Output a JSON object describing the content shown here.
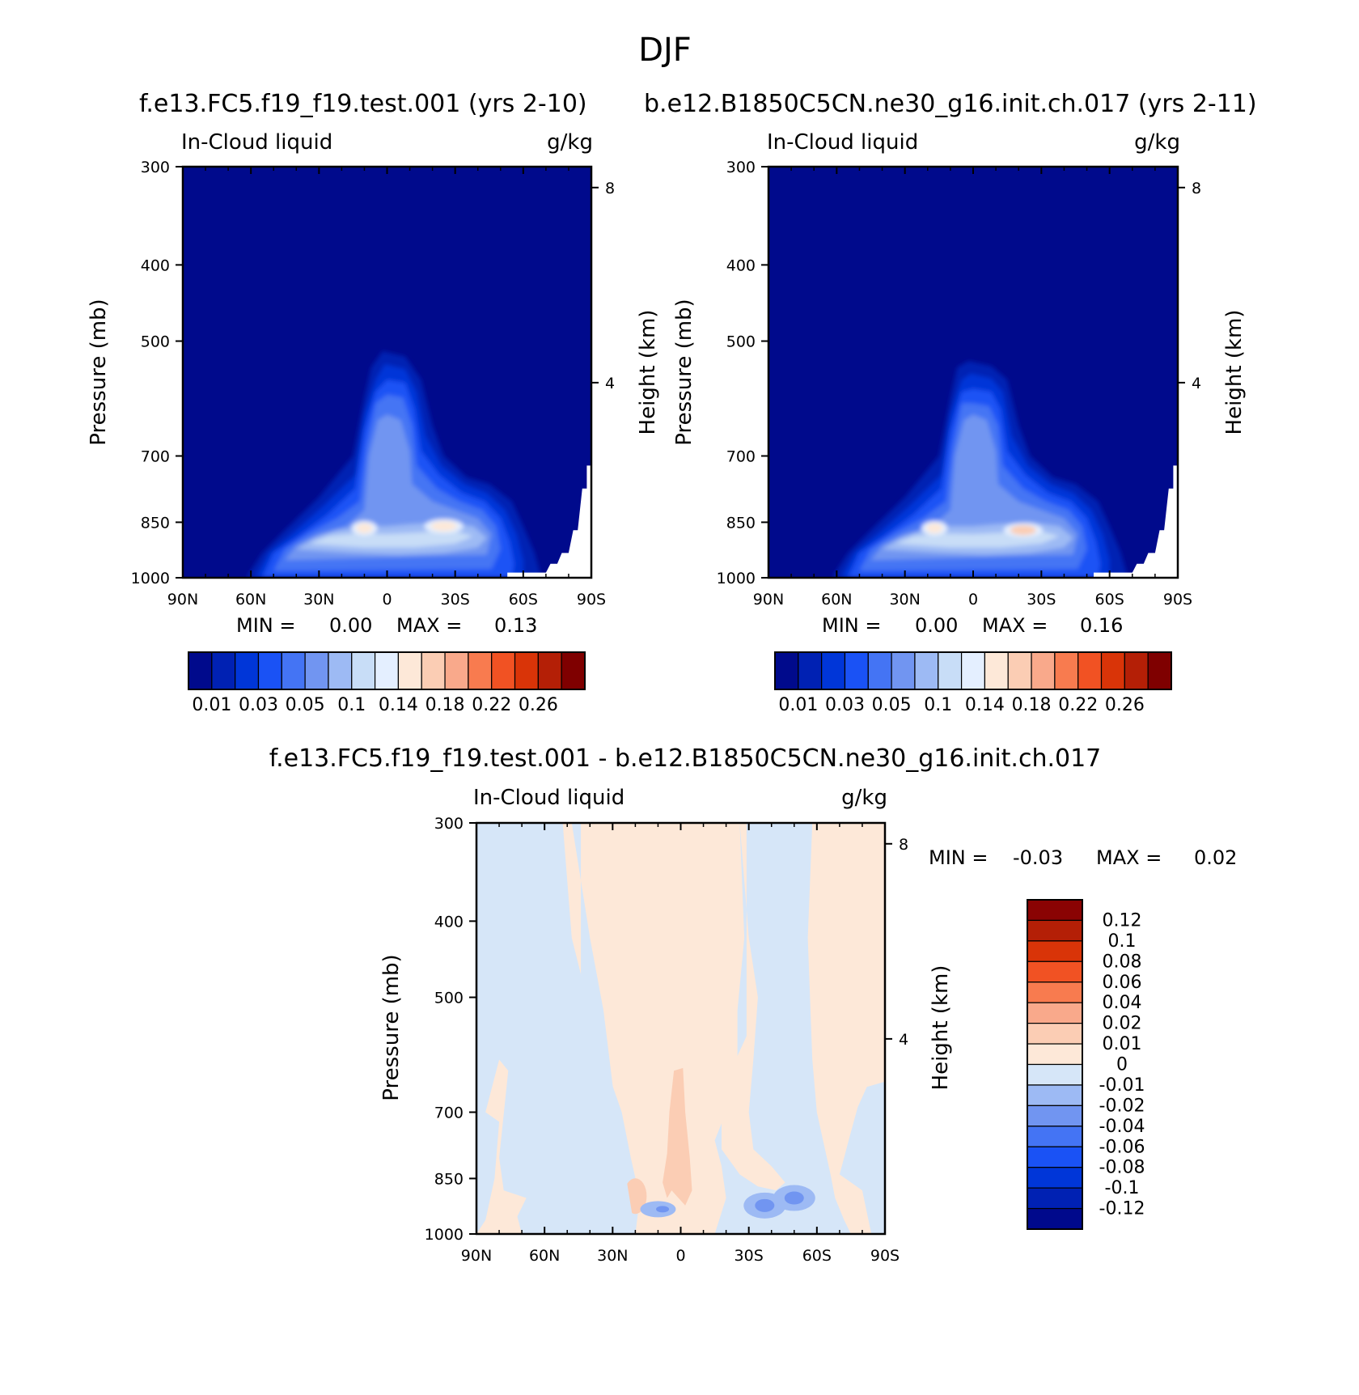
{
  "figure": {
    "title": "DJF",
    "panel1_subtitle": "f.e13.FC5.f19_f19.test.001 (yrs 2-10)",
    "panel2_subtitle": "b.e12.B1850C5CN.ne30_g16.init.ch.017 (yrs 2-11)",
    "panel3_subtitle": "f.e13.FC5.f19_f19.test.001 - b.e12.B1850C5CN.ne30_g16.init.ch.017"
  },
  "colors": {
    "abs_levels": [
      "#000a8c",
      "#0021b3",
      "#0036d8",
      "#1a52f5",
      "#4474f4",
      "#7195f1",
      "#9dbaf4",
      "#c8ddf7",
      "#e4efff",
      "#fde8d8",
      "#fbcdb4",
      "#f9a98b",
      "#f87b4f",
      "#f15223",
      "#d93408",
      "#b41f06",
      "#7f0000"
    ],
    "diff_levels": [
      "#00098c",
      "#0021b3",
      "#0036d8",
      "#1a52f5",
      "#4474f4",
      "#7195f1",
      "#9dbaf4",
      "#d6e6f8",
      "#fde8d8",
      "#fbcdb4",
      "#f9a98b",
      "#f87b4f",
      "#f15223",
      "#d93408",
      "#b41f06",
      "#8a0303"
    ]
  },
  "chart_data": [
    {
      "type": "heatmap",
      "name": "model-test",
      "title": "In-Cloud liquid",
      "units": "g/kg",
      "subtitle": "f.e13.FC5.f19_f19.test.001 (yrs 2-10)",
      "xlabel": "",
      "ylabel": "Pressure (mb)",
      "y2label": "Height (km)",
      "xticks": [
        "90N",
        "60N",
        "30N",
        "0",
        "30S",
        "60S",
        "90S"
      ],
      "yticks": [
        "300",
        "400",
        "500",
        "700",
        "850",
        "1000"
      ],
      "y2ticks": [
        "8",
        "4"
      ],
      "ylim": [
        1000,
        300
      ],
      "min_label": "MIN =",
      "min_value": "0.00",
      "max_label": "MAX =",
      "max_value": "0.13",
      "colorbar_labels": [
        "0.01",
        "0.03",
        "0.05",
        "0.1",
        "0.14",
        "0.18",
        "0.22",
        "0.26"
      ],
      "features": [
        {
          "lat": 0,
          "p": 515,
          "level": 1,
          "desc": "tropical plume top"
        },
        {
          "lat": -25,
          "p": 860,
          "level": 9,
          "desc": "max near 25S"
        },
        {
          "lat": 10,
          "p": 865,
          "level": 9,
          "desc": "secondary max"
        }
      ]
    },
    {
      "type": "heatmap",
      "name": "model-control",
      "title": "In-Cloud liquid",
      "units": "g/kg",
      "subtitle": "b.e12.B1850C5CN.ne30_g16.init.ch.017 (yrs 2-11)",
      "xlabel": "",
      "ylabel": "Pressure (mb)",
      "y2label": "Height (km)",
      "xticks": [
        "90N",
        "60N",
        "30N",
        "0",
        "30S",
        "60S",
        "90S"
      ],
      "yticks": [
        "300",
        "400",
        "500",
        "700",
        "850",
        "1000"
      ],
      "y2ticks": [
        "8",
        "4"
      ],
      "ylim": [
        1000,
        300
      ],
      "min_label": "MIN =",
      "min_value": "0.00",
      "max_label": "MAX =",
      "max_value": "0.16",
      "colorbar_labels": [
        "0.01",
        "0.03",
        "0.05",
        "0.1",
        "0.14",
        "0.18",
        "0.22",
        "0.26"
      ],
      "features": [
        {
          "lat": 0,
          "p": 530,
          "level": 1,
          "desc": "tropical plume top"
        },
        {
          "lat": -22,
          "p": 870,
          "level": 10,
          "desc": "max near 22S"
        },
        {
          "lat": 17,
          "p": 865,
          "level": 9,
          "desc": "secondary max"
        }
      ]
    },
    {
      "type": "heatmap",
      "name": "difference",
      "title": "In-Cloud liquid",
      "units": "g/kg",
      "subtitle": "f.e13.FC5.f19_f19.test.001 - b.e12.B1850C5CN.ne30_g16.init.ch.017",
      "xlabel": "",
      "ylabel": "Pressure (mb)",
      "y2label": "Height (km)",
      "xticks": [
        "90N",
        "60N",
        "30N",
        "0",
        "30S",
        "60S",
        "90S"
      ],
      "yticks": [
        "300",
        "400",
        "500",
        "700",
        "850",
        "1000"
      ],
      "y2ticks": [
        "8",
        "4"
      ],
      "ylim": [
        1000,
        300
      ],
      "min_label": "MIN =",
      "min_value": "-0.03",
      "max_label": "MAX =",
      "max_value": "0.02",
      "colorbar_labels": [
        "0.12",
        "0.1",
        "0.08",
        "0.06",
        "0.04",
        "0.02",
        "0.01",
        "0",
        "-0.01",
        "-0.02",
        "-0.04",
        "-0.06",
        "-0.08",
        "-0.1",
        "-0.12"
      ],
      "features": [
        {
          "lat": 0,
          "p": 780,
          "level": "0.01 to 0.02",
          "desc": "positive core at equator"
        },
        {
          "lat": -37,
          "p": 920,
          "level": "-0.02 to -0.04",
          "desc": "negative pocket"
        },
        {
          "lat": -50,
          "p": 900,
          "level": "-0.02 to -0.04",
          "desc": "negative pocket"
        }
      ]
    }
  ]
}
